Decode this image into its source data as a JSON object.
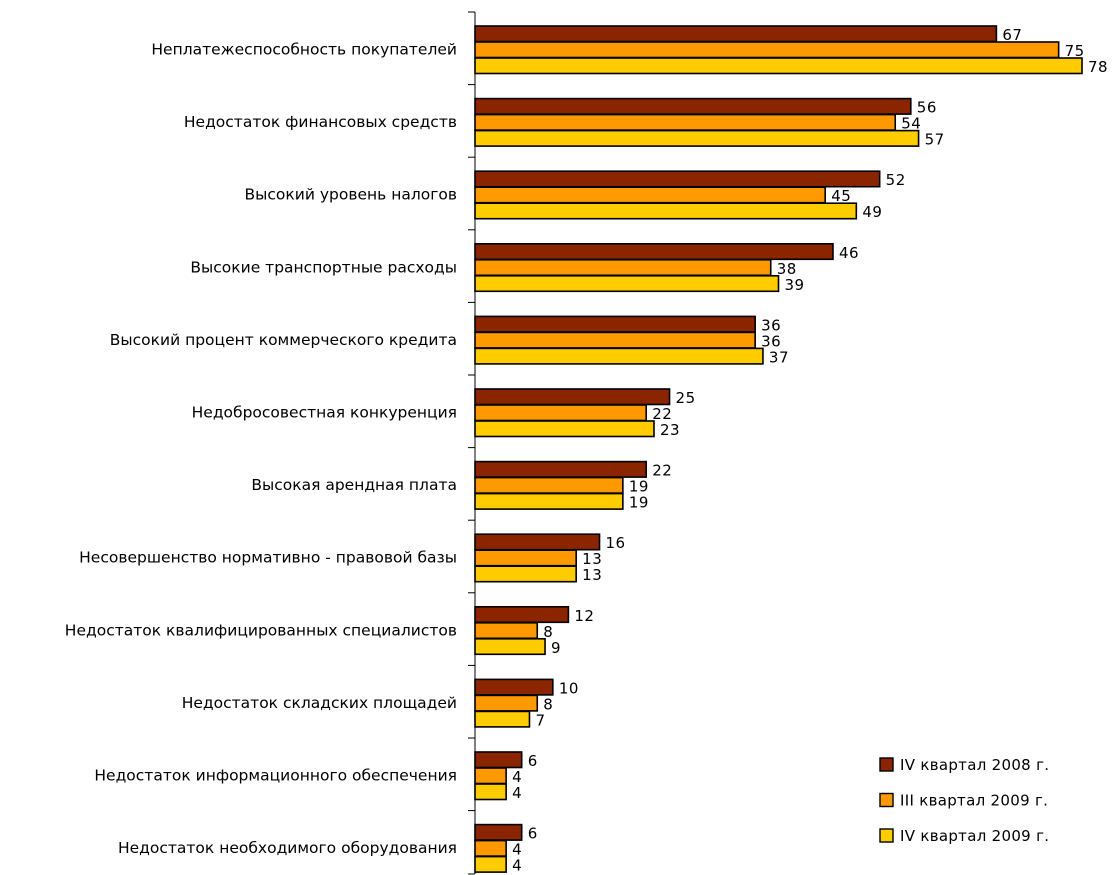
{
  "chart_data": {
    "type": "bar",
    "orientation": "horizontal",
    "title": "",
    "xlabel": "",
    "ylabel": "",
    "xlim": [
      0,
      78
    ],
    "grid": false,
    "legend_position": "bottom-right",
    "categories": [
      "Неплатежеспособность покупателей",
      "Недостаток финансовых средств",
      "Высокий уровень налогов",
      "Высокие транспортные расходы",
      "Высокий процент коммерческого кредита",
      "Недобросовестная конкуренция",
      "Высокая арендная плата",
      "Несовершенство нормативно - правовой базы",
      "Недостаток  квалифицированных специалистов",
      "Недостаток складских площадей",
      "Недостаток информационного обеспечения",
      "Недостаток необходимого оборудования"
    ],
    "series": [
      {
        "name": "IV квартал 2008 г.",
        "color": "#8B2500",
        "values": [
          67,
          56,
          52,
          46,
          36,
          25,
          22,
          16,
          12,
          10,
          6,
          6
        ]
      },
      {
        "name": "III квартал 2009 г.",
        "color": "#FF9900",
        "values": [
          75,
          54,
          45,
          38,
          36,
          22,
          19,
          13,
          8,
          8,
          4,
          4
        ]
      },
      {
        "name": "IV квартал 2009 г.",
        "color": "#FFCC00",
        "values": [
          78,
          57,
          49,
          39,
          37,
          23,
          19,
          13,
          9,
          7,
          4,
          4
        ]
      }
    ]
  }
}
